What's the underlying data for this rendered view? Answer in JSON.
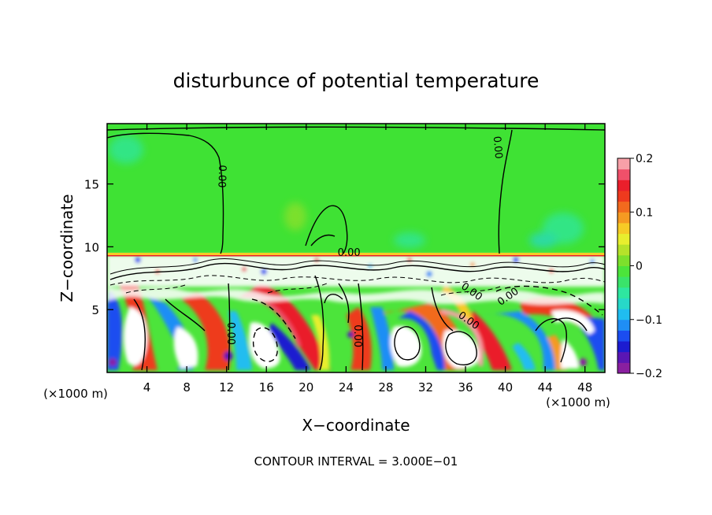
{
  "chart_data": {
    "type": "heatmap",
    "title": "disturbunce of potential temperature",
    "xlabel": "X−coordinate",
    "ylabel": "Z−coordinate",
    "x_unit": "(×1000 m)",
    "x_unit_right": "(×1000 m)",
    "footer": "CONTOUR INTERVAL = 3.000E−01",
    "xlim": [
      0,
      50
    ],
    "ylim": [
      0,
      19.8
    ],
    "xticks": [
      4,
      8,
      12,
      16,
      20,
      24,
      28,
      32,
      36,
      40,
      44,
      48
    ],
    "xtick_labels": [
      "4",
      "8",
      "12",
      "16",
      "20",
      "24",
      "28",
      "32",
      "36",
      "40",
      "44",
      "48"
    ],
    "yticks": [
      5,
      10,
      15
    ],
    "ytick_labels": [
      "5",
      "10",
      "15"
    ],
    "colorbar": {
      "min": -0.2,
      "max": 0.2,
      "ticks": [
        0.2,
        0.1,
        0,
        -0.1,
        -0.2
      ],
      "tick_labels": [
        "0.2",
        "0.1",
        "0",
        "−0.1",
        "−0.2"
      ],
      "colors": [
        "#8a1fa0",
        "#5a16b4",
        "#1c1cd0",
        "#1b4df0",
        "#1f8ef5",
        "#20bdf0",
        "#27d8c8",
        "#2ee6a0",
        "#3ae36a",
        "#4ce43b",
        "#7de02c",
        "#b6e22a",
        "#e8ee2e",
        "#f6cb26",
        "#f59a22",
        "#f26a1e",
        "#ee3a1e",
        "#ea1f2b",
        "#f0506a",
        "#f8a0a8"
      ]
    },
    "contour_labels": [
      {
        "text": "0.00",
        "x": 11.5,
        "y": 15.6,
        "rotate": 92
      },
      {
        "text": "0.00",
        "x": 39.2,
        "y": 17.9,
        "rotate": 85
      },
      {
        "text": "0.00",
        "x": 24.3,
        "y": 9.5,
        "rotate": 0
      },
      {
        "text": "0.00",
        "x": 12.4,
        "y": 3.1,
        "rotate": 90
      },
      {
        "text": "0.00",
        "x": 25.1,
        "y": 2.9,
        "rotate": 90
      },
      {
        "text": "0.00",
        "x": 36.6,
        "y": 6.4,
        "rotate": 35
      },
      {
        "text": "0.00",
        "x": 36.3,
        "y": 4.1,
        "rotate": 35
      },
      {
        "text": "0.00",
        "x": 40.3,
        "y": 6.0,
        "rotate": -35
      }
    ],
    "boundary_z": 9.6
  }
}
